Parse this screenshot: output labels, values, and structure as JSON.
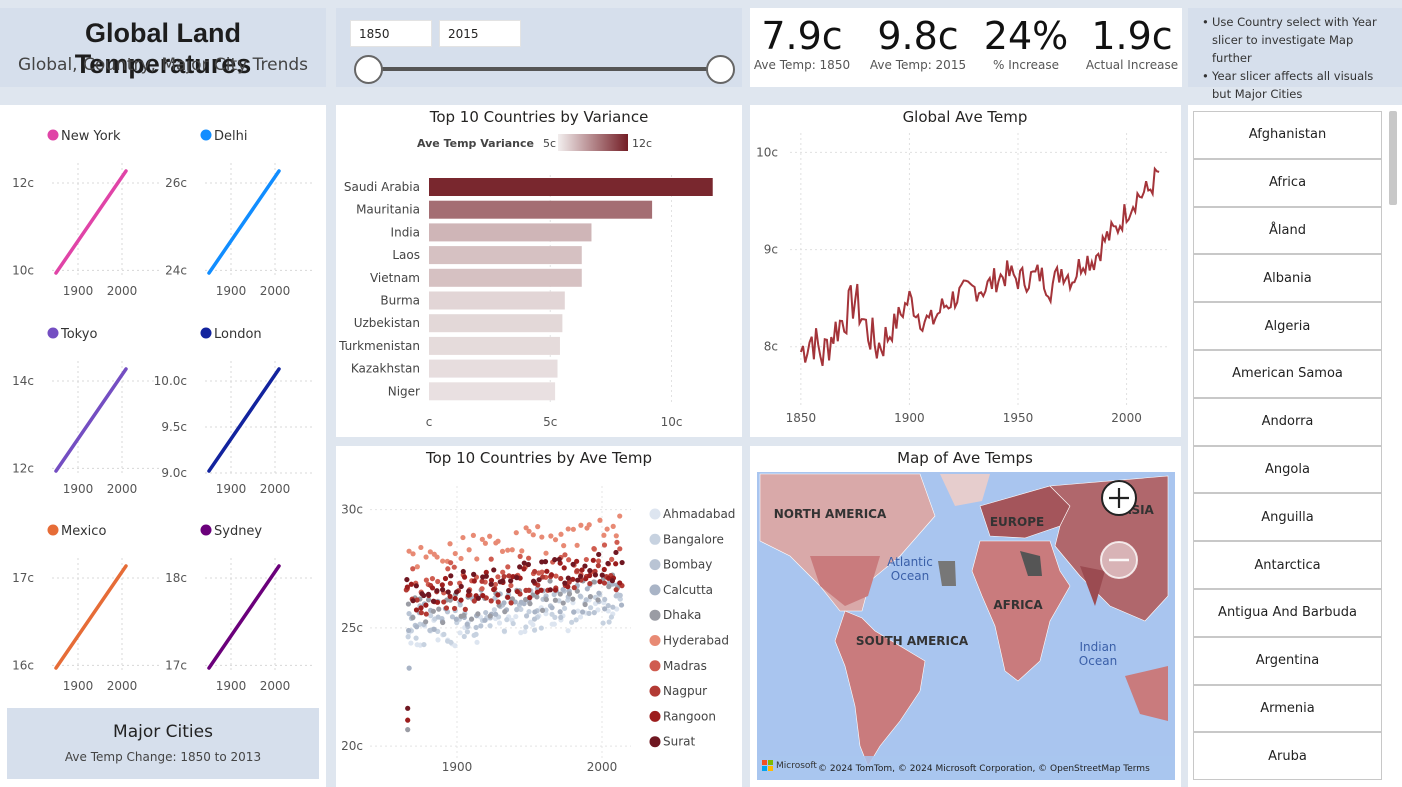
{
  "header": {
    "title": "Global Land Temperatures",
    "subtitle": "Global, Country, Major City Trends"
  },
  "slicer": {
    "start_year": "1850",
    "end_year": "2015"
  },
  "kpis": [
    {
      "value": "7.9c",
      "label": "Ave Temp: 1850"
    },
    {
      "value": "9.8c",
      "label": "Ave Temp: 2015"
    },
    {
      "value": "24%",
      "label": "% Increase"
    },
    {
      "value": "1.9c",
      "label": "Actual Increase"
    }
  ],
  "notes": [
    "Use Country select with Year slicer to investigate Map further",
    "Year slicer affects all visuals but Major Cities"
  ],
  "cities_panel": {
    "title": "Major Cities",
    "subtitle": "Ave Temp Change: 1850 to 2013"
  },
  "city_charts": [
    {
      "name": "New York",
      "color": "#e044a7",
      "yticks": [
        "12c",
        "10c"
      ],
      "xticks": [
        "1900",
        "2000"
      ]
    },
    {
      "name": "Delhi",
      "color": "#118dff",
      "yticks": [
        "26c",
        "24c"
      ],
      "xticks": [
        "1900",
        "2000"
      ]
    },
    {
      "name": "Tokyo",
      "color": "#744ec2",
      "yticks": [
        "14c",
        "12c"
      ],
      "xticks": [
        "1900",
        "2000"
      ]
    },
    {
      "name": "London",
      "color": "#12239e",
      "yticks": [
        "10.0c",
        "9.5c",
        "9.0c"
      ],
      "xticks": [
        "1900",
        "2000"
      ]
    },
    {
      "name": "Mexico",
      "color": "#e66c37",
      "yticks": [
        "17c",
        "16c"
      ],
      "xticks": [
        "1900",
        "2000"
      ]
    },
    {
      "name": "Sydney",
      "color": "#6b007b",
      "yticks": [
        "18c",
        "17c"
      ],
      "xticks": [
        "1900",
        "2000"
      ]
    }
  ],
  "map": {
    "title": "Map of Ave Temps",
    "labels": [
      "NORTH AMERICA",
      "EUROPE",
      "ASIA",
      "AFRICA",
      "SOUTH AMERICA",
      "Atlantic Ocean",
      "Indian Ocean"
    ],
    "attribution": "© 2024 TomTom, © 2024 Microsoft Corporation, © OpenStreetMap  Terms",
    "brand": "Microsoft"
  },
  "country_list": [
    "Afghanistan",
    "Africa",
    "Åland",
    "Albania",
    "Algeria",
    "American Samoa",
    "Andorra",
    "Angola",
    "Anguilla",
    "Antarctica",
    "Antigua And Barbuda",
    "Argentina",
    "Armenia",
    "Aruba"
  ],
  "chart_data": [
    {
      "type": "bar",
      "title": "Top 10 Countries by Variance",
      "legend_title": "Ave Temp Variance",
      "legend_min": "5c",
      "legend_max": "12c",
      "categories": [
        "Saudi Arabia",
        "Mauritania",
        "India",
        "Laos",
        "Vietnam",
        "Burma",
        "Uzbekistan",
        "Turkmenistan",
        "Kazakhstan",
        "Niger"
      ],
      "values": [
        11.7,
        9.2,
        6.7,
        6.3,
        6.3,
        5.6,
        5.5,
        5.4,
        5.3,
        5.2
      ],
      "xlim": [
        0,
        12
      ],
      "xticks": [
        "c",
        "5c",
        "10c"
      ]
    },
    {
      "type": "line",
      "title": "Global Ave Temp",
      "ylim": [
        7.4,
        10.2
      ],
      "xlim": [
        1845,
        2020
      ],
      "yticks": [
        "10c",
        "9c",
        "8c"
      ],
      "xticks": [
        "1850",
        "1900",
        "1950",
        "2000"
      ],
      "x": [
        1850,
        1855,
        1860,
        1865,
        1870,
        1875,
        1880,
        1885,
        1890,
        1895,
        1900,
        1905,
        1910,
        1915,
        1920,
        1925,
        1930,
        1935,
        1940,
        1945,
        1950,
        1955,
        1960,
        1965,
        1970,
        1975,
        1980,
        1985,
        1990,
        1995,
        2000,
        2005,
        2010,
        2015
      ],
      "y": [
        7.95,
        8.1,
        7.9,
        8.15,
        8.3,
        8.5,
        8.2,
        8.0,
        8.1,
        8.3,
        8.5,
        8.3,
        8.25,
        8.4,
        8.5,
        8.55,
        8.6,
        8.6,
        8.7,
        8.75,
        8.7,
        8.7,
        8.75,
        8.6,
        8.8,
        8.7,
        8.9,
        8.9,
        9.1,
        9.2,
        9.4,
        9.55,
        9.6,
        9.8
      ]
    },
    {
      "type": "scatter",
      "title": "Top 10 Countries by Ave Temp",
      "ylim": [
        19.5,
        31
      ],
      "xlim": [
        1840,
        2020
      ],
      "yticks": [
        "30c",
        "25c",
        "20c"
      ],
      "xticks": [
        "1900",
        "2000"
      ],
      "series": [
        {
          "name": "Ahmadabad",
          "color": "#dde5f0"
        },
        {
          "name": "Bangalore",
          "color": "#c7d2e0"
        },
        {
          "name": "Bombay",
          "color": "#b9c4d4"
        },
        {
          "name": "Calcutta",
          "color": "#a9b4c6"
        },
        {
          "name": "Dhaka",
          "color": "#9a9ca4"
        },
        {
          "name": "Hyderabad",
          "color": "#e88a74"
        },
        {
          "name": "Madras",
          "color": "#cf5c50"
        },
        {
          "name": "Nagpur",
          "color": "#b23a34"
        },
        {
          "name": "Rangoon",
          "color": "#9c1d1d"
        },
        {
          "name": "Surat",
          "color": "#6f1721"
        }
      ]
    }
  ]
}
